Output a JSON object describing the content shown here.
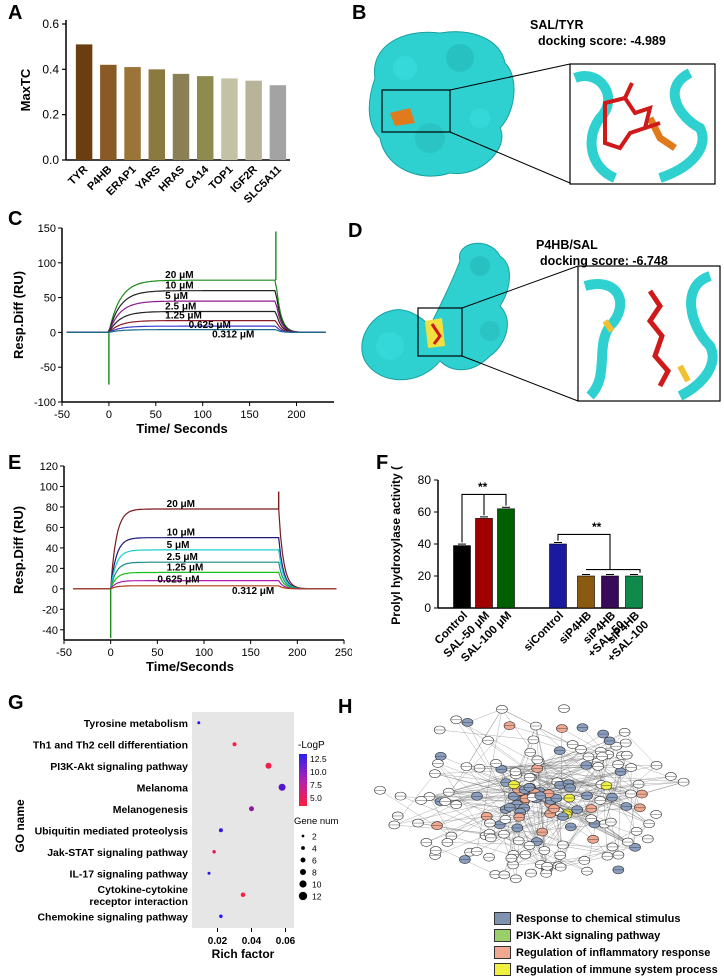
{
  "panels": {
    "A": "A",
    "B": "B",
    "C": "C",
    "D": "D",
    "E": "E",
    "F": "F",
    "G": "G",
    "H": "H"
  },
  "panel_A": {
    "chart_data": {
      "type": "bar",
      "categories": [
        "TYR",
        "P4HB",
        "ERAP1",
        "YARS",
        "HRAS",
        "CA14",
        "TOP1",
        "IGF2R",
        "SLC5A11"
      ],
      "values": [
        0.51,
        0.42,
        0.41,
        0.4,
        0.38,
        0.37,
        0.36,
        0.35,
        0.33
      ],
      "ylabel": "MaxTC",
      "ylim": [
        0,
        0.6
      ],
      "yticks": [
        "0.0",
        "0.2",
        "0.4",
        "0.6"
      ],
      "colors": [
        "#6b3e12",
        "#8a5a26",
        "#9b7438",
        "#8a7a40",
        "#8a7f55",
        "#8f8b4e",
        "#c4c2a4",
        "#b8b49a",
        "#a3a3a3"
      ]
    }
  },
  "panel_B": {
    "title": "SAL/TYR",
    "score": "docking score: -4.989"
  },
  "panel_C": {
    "chart_data": {
      "type": "line",
      "xlabel": "Time/ Seconds",
      "ylabel": "Resp.Diff (RU)",
      "xlim": [
        -50,
        240
      ],
      "ylim": [
        -100,
        150
      ],
      "xticks": [
        "-50",
        "0",
        "50",
        "100",
        "150",
        "200"
      ],
      "yticks": [
        "-100",
        "-50",
        "0",
        "50",
        "100",
        "150"
      ],
      "series": [
        {
          "name": "20 μM",
          "plateau": 75,
          "color": "#1a8a1a"
        },
        {
          "name": "10 μM",
          "plateau": 60,
          "color": "#222222"
        },
        {
          "name": "5 μM",
          "plateau": 45,
          "color": "#8b1a8b"
        },
        {
          "name": "2.5 μM",
          "plateau": 30,
          "color": "#222222"
        },
        {
          "name": "1.25 μM",
          "plateau": 17,
          "color": "#8b1a2a"
        },
        {
          "name": "0.625 μM",
          "plateau": 9,
          "color": "#3a3ad0"
        },
        {
          "name": "0.312 μM",
          "plateau": 4,
          "color": "#1a6a8a"
        }
      ]
    }
  },
  "panel_D": {
    "title": "P4HB/SAL",
    "score": "docking score: -6.748"
  },
  "panel_E": {
    "chart_data": {
      "type": "line",
      "xlabel": "Time/Seconds",
      "ylabel": "Resp.Diff (RU)",
      "xlim": [
        -50,
        250
      ],
      "ylim": [
        -50,
        120
      ],
      "xticks": [
        "-50",
        "0",
        "50",
        "100",
        "150",
        "200",
        "250"
      ],
      "yticks": [
        "-40",
        "-20",
        "0",
        "20",
        "40",
        "60",
        "80",
        "100",
        "120"
      ],
      "series": [
        {
          "name": "20 μM",
          "plateau": 78,
          "color": "#7a1a1a"
        },
        {
          "name": "10 μM",
          "plateau": 50,
          "color": "#1a1a7a"
        },
        {
          "name": "5 μM",
          "plateau": 38,
          "color": "#1ad0d0"
        },
        {
          "name": "2.5 μM",
          "plateau": 26,
          "color": "#1a8a8a"
        },
        {
          "name": "1.25 μM",
          "plateau": 16,
          "color": "#1ac01a"
        },
        {
          "name": "0.625 μM",
          "plateau": 8,
          "color": "#b01ab0"
        },
        {
          "name": "0.312 μM",
          "plateau": 3,
          "color": "#b03a1a"
        }
      ]
    }
  },
  "panel_F": {
    "chart_data": {
      "type": "bar",
      "ylabel": "Prolyl hydroxylase activity (%)",
      "ylim": [
        0,
        80
      ],
      "yticks": [
        "0",
        "20",
        "40",
        "60",
        "80"
      ],
      "categories": [
        "Control",
        "SAL-50 μM",
        "SAL-100 μM",
        "siControl",
        "siP4HB",
        "siP4HB +SAL-50",
        "siP4HB +SAL-100"
      ],
      "values": [
        39,
        56,
        62,
        40,
        20,
        20,
        20
      ],
      "colors": [
        "#000000",
        "#a00000",
        "#006000",
        "#1a1aa0",
        "#8a5a10",
        "#3a0a5a",
        "#108a4a"
      ],
      "significance": [
        "**",
        "**"
      ]
    }
  },
  "panel_G": {
    "chart_data": {
      "type": "scatter",
      "xlabel": "Rich factor",
      "ylabel": "GO name",
      "xticks": [
        "0.02",
        "0.04",
        "0.06"
      ],
      "xlim": [
        0.005,
        0.065
      ],
      "categories": [
        "Tyrosine metabolism",
        "Th1 and Th2 cell differentiation",
        "PI3K-Akt signaling pathway",
        "Melanoma",
        "Melanogenesis",
        "Ubiquitin mediated proteolysis",
        "Jak-STAT signaling pathway",
        "IL-17 signaling pathway",
        "Cytokine-cytokine receptor interaction",
        "Chemokine signaling pathway"
      ],
      "points": [
        {
          "x": 0.009,
          "size": 2,
          "logp": 12.5
        },
        {
          "x": 0.03,
          "size": 4,
          "logp": 5.0
        },
        {
          "x": 0.05,
          "size": 8,
          "logp": 5.5
        },
        {
          "x": 0.058,
          "size": 10,
          "logp": 11.0
        },
        {
          "x": 0.04,
          "size": 6,
          "logp": 9.0
        },
        {
          "x": 0.022,
          "size": 4,
          "logp": 12.0
        },
        {
          "x": 0.018,
          "size": 3,
          "logp": 6.0
        },
        {
          "x": 0.015,
          "size": 2,
          "logp": 12.5
        },
        {
          "x": 0.035,
          "size": 5,
          "logp": 5.0
        },
        {
          "x": 0.022,
          "size": 3,
          "logp": 12.5
        }
      ],
      "legend_color_title": "-LogP",
      "legend_color_ticks": [
        "12.5",
        "10.0",
        "7.5",
        "5.0"
      ],
      "legend_size_title": "Gene number",
      "legend_size_ticks": [
        "2",
        "4",
        "6",
        "8",
        "10",
        "12"
      ]
    }
  },
  "panel_H": {
    "legend": [
      {
        "label": "Response to chemical stimulus",
        "color": "#7f93b0"
      },
      {
        "label": "PI3K-Akt signaling pathway",
        "color": "#9ad06a"
      },
      {
        "label": "Regulation of inflammatory response",
        "color": "#f0a890"
      },
      {
        "label": "Regulation of immune system process",
        "color": "#f0f040"
      }
    ]
  }
}
